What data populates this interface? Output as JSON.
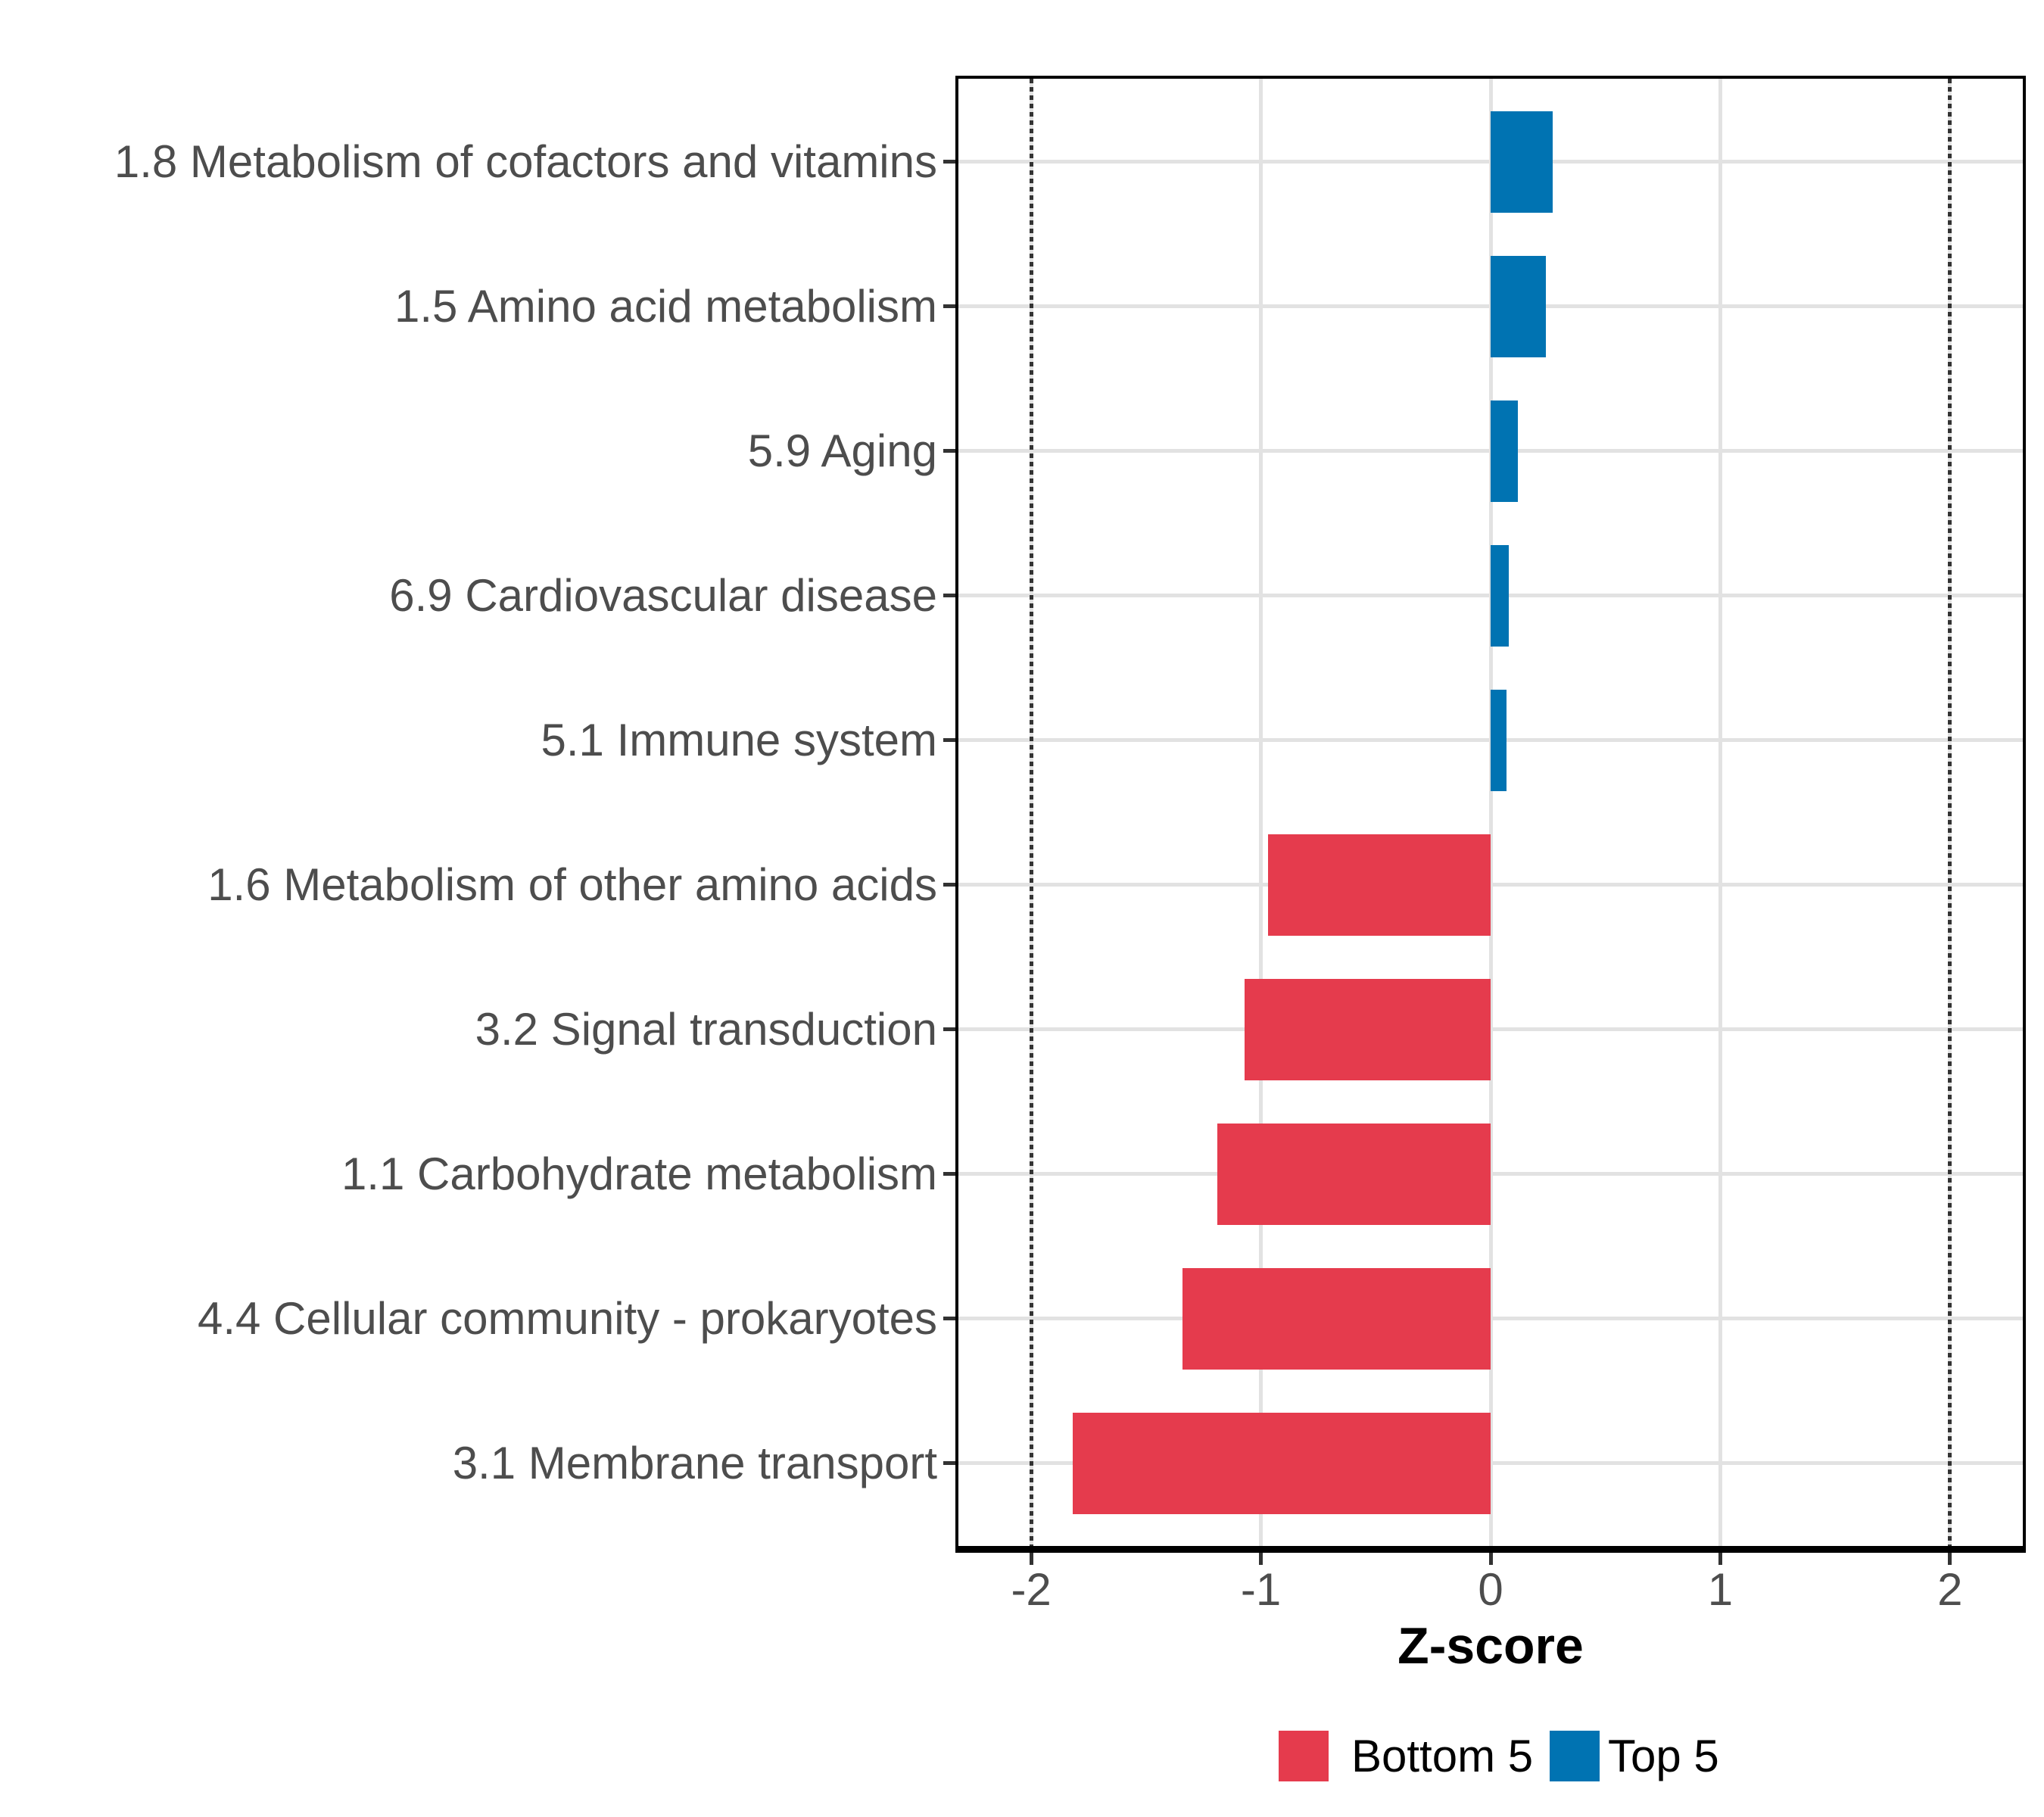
{
  "chart_data": {
    "type": "bar",
    "orientation": "horizontal",
    "title": "",
    "xlabel": "Z-score",
    "ylabel": "",
    "xlim": [
      -2.33,
      2.33
    ],
    "x_ticks": [
      -2,
      -1,
      0,
      1,
      2
    ],
    "reference_lines": {
      "values": [
        -2,
        2
      ],
      "style": "dotted",
      "color": "#333333"
    },
    "grid": true,
    "background": "#FFFFFF",
    "gridline_color": "#E2E2E2",
    "categories": [
      "1.8 Metabolism of cofactors and vitamins",
      "1.5 Amino acid metabolism",
      "5.9 Aging",
      "6.9 Cardiovascular disease",
      "5.1 Immune system",
      "1.6 Metabolism of other amino acids",
      "3.2 Signal transduction",
      "1.1 Carbohydrate metabolism",
      "4.4 Cellular community - prokaryotes",
      "3.1 Membrane transport"
    ],
    "values": [
      0.27,
      0.24,
      0.12,
      0.08,
      0.07,
      -0.97,
      -1.07,
      -1.19,
      -1.34,
      -1.82
    ],
    "groups": [
      "top5",
      "top5",
      "top5",
      "top5",
      "top5",
      "bottom5",
      "bottom5",
      "bottom5",
      "bottom5",
      "bottom5"
    ],
    "legend": {
      "position": "bottom",
      "entries": [
        {
          "id": "bottom5",
          "label": "Bottom 5",
          "color": "#E53B4D"
        },
        {
          "id": "top5",
          "label": "Top 5",
          "color": "#0073B2"
        }
      ]
    }
  }
}
